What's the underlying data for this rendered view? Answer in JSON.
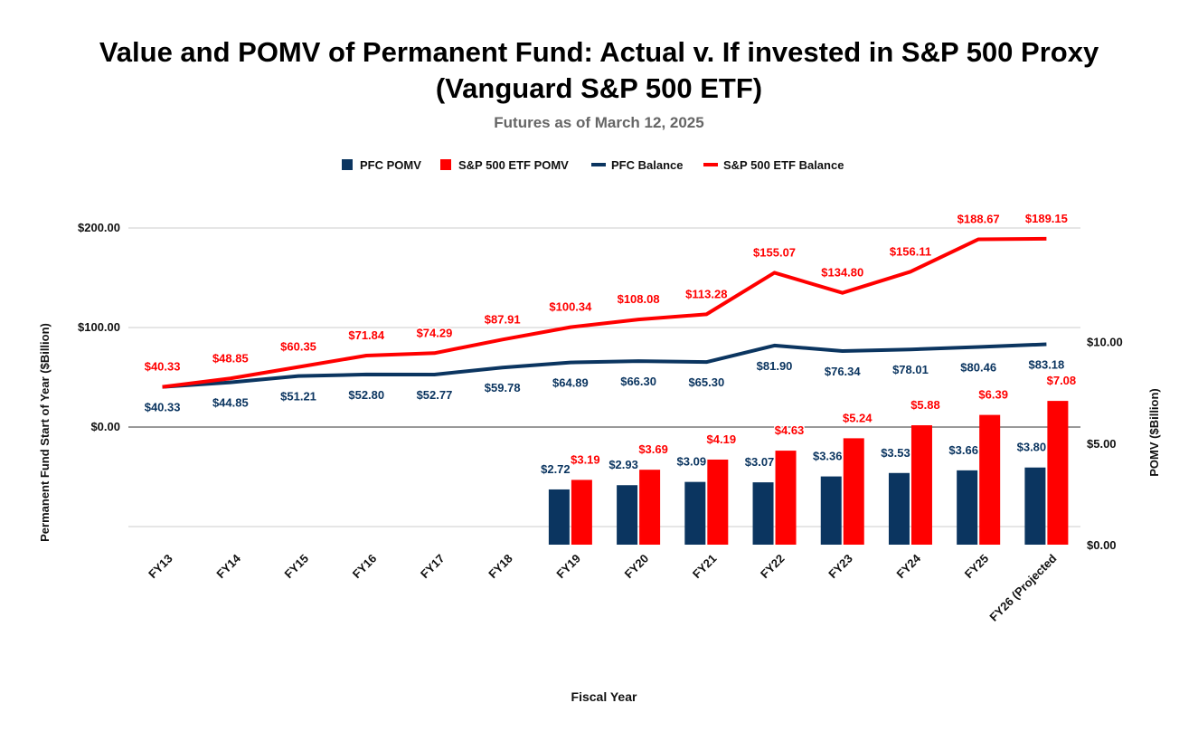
{
  "chart_data": {
    "type": "bar",
    "title": [
      "Value and POMV of Permanent Fund: Actual v. If invested in S&P 500 Proxy",
      "(Vanguard S&P 500 ETF)"
    ],
    "subtitle": "Futures as of March 12, 2025",
    "xlabel": "Fiscal Year",
    "ylabel_left": "Permanent Fund Start of Year ($Billion)",
    "ylabel_right": "POMV ($Billion)",
    "categories": [
      "FY13",
      "FY14",
      "FY15",
      "FY16",
      "FY17",
      "FY18",
      "FY19",
      "FY20",
      "FY21",
      "FY22",
      "FY23",
      "FY24",
      "FY25",
      "FY26 (Projected"
    ],
    "left_axis": {
      "ticks": [
        0,
        100,
        200
      ],
      "tick_labels": [
        "$0.00",
        "$100.00",
        "$200.00"
      ],
      "range": [
        -100,
        200
      ]
    },
    "right_axis": {
      "ticks": [
        0,
        5,
        10
      ],
      "tick_labels": [
        "$0.00",
        "$5.00",
        "$10.00"
      ],
      "range": [
        0,
        17.6
      ]
    },
    "legend_position": "top",
    "legend": [
      "PFC POMV",
      "S&P 500 ETF POMV",
      "PFC Balance",
      "S&P 500 ETF Balance"
    ],
    "series": [
      {
        "name": "PFC POMV",
        "kind": "bar",
        "axis": "right",
        "color": "#0b3560",
        "values": [
          null,
          null,
          null,
          null,
          null,
          null,
          2.72,
          2.93,
          3.09,
          3.07,
          3.36,
          3.53,
          3.66,
          3.8
        ],
        "labels": [
          "",
          "",
          "",
          "",
          "",
          "",
          "$2.72",
          "$2.93",
          "$3.09",
          "$3.07",
          "$3.36",
          "$3.53",
          "$3.66",
          "$3.80"
        ]
      },
      {
        "name": "S&P 500 ETF POMV",
        "kind": "bar",
        "axis": "right",
        "color": "#ff0000",
        "values": [
          null,
          null,
          null,
          null,
          null,
          null,
          3.19,
          3.69,
          4.19,
          4.63,
          5.24,
          5.88,
          6.39,
          7.08
        ],
        "labels": [
          "",
          "",
          "",
          "",
          "",
          "",
          "$3.19",
          "$3.69",
          "$4.19",
          "$4.63",
          "$5.24",
          "$5.88",
          "$6.39",
          "$7.08"
        ]
      },
      {
        "name": "PFC Balance",
        "kind": "line",
        "axis": "left",
        "color": "#0b3560",
        "values": [
          40.33,
          44.85,
          51.21,
          52.8,
          52.77,
          59.78,
          64.89,
          66.3,
          65.3,
          81.9,
          76.34,
          78.01,
          80.46,
          83.18
        ],
        "labels": [
          "$40.33",
          "$44.85",
          "$51.21",
          "$52.80",
          "$52.77",
          "$59.78",
          "$64.89",
          "$66.30",
          "$65.30",
          "$81.90",
          "$76.34",
          "$78.01",
          "$80.46",
          "$83.18"
        ]
      },
      {
        "name": "S&P 500 ETF Balance",
        "kind": "line",
        "axis": "left",
        "color": "#ff0000",
        "values": [
          40.33,
          48.85,
          60.35,
          71.84,
          74.29,
          87.91,
          100.34,
          108.08,
          113.28,
          155.07,
          134.8,
          156.11,
          188.67,
          189.15
        ],
        "labels": [
          "$40.33",
          "$48.85",
          "$60.35",
          "$71.84",
          "$74.29",
          "$87.91",
          "$100.34",
          "$108.08",
          "$113.28",
          "$155.07",
          "$134.80",
          "$156.11",
          "$188.67",
          "$189.15"
        ]
      }
    ]
  }
}
